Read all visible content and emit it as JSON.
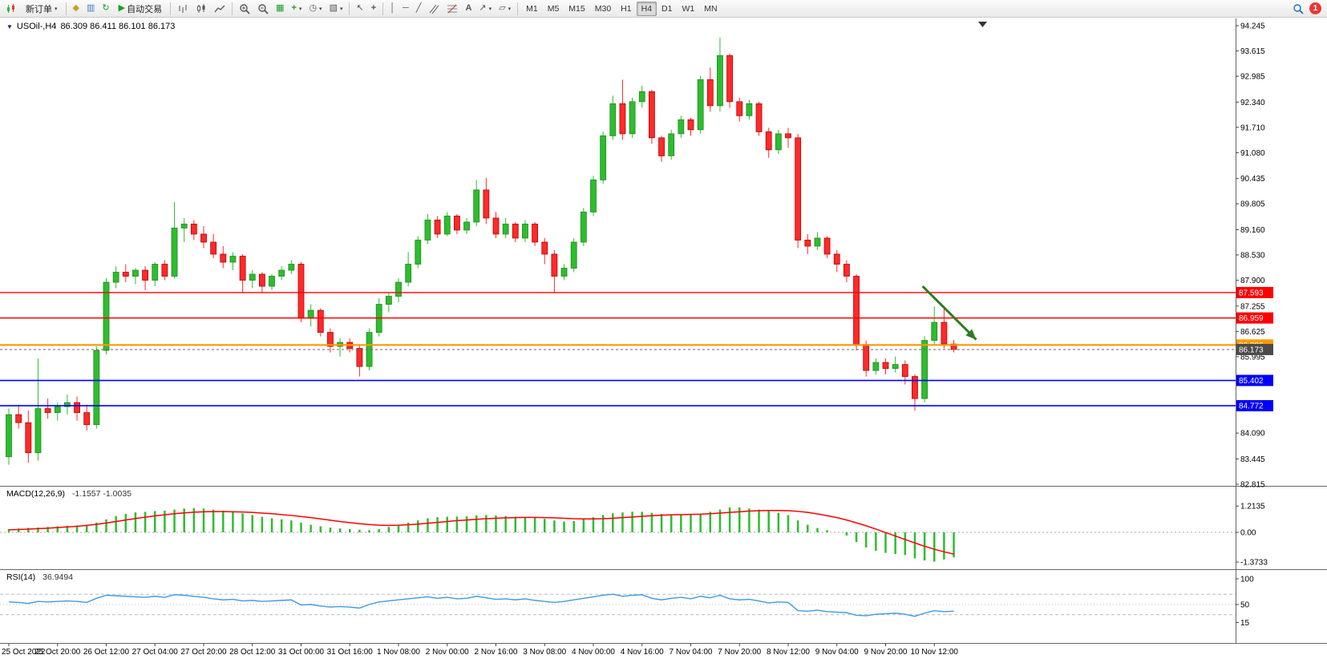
{
  "toolbar": {
    "new_order_label": "新订单",
    "autotrading_label": "自动交易",
    "timeframes": [
      "M1",
      "M5",
      "M15",
      "M30",
      "H1",
      "H4",
      "D1",
      "W1",
      "MN"
    ],
    "active_timeframe": "H4",
    "notification_count": "1"
  },
  "chart_data": {
    "type": "candlestick",
    "symbol": "USOil-",
    "timeframe": "H4",
    "title_text": "USOil-,H4",
    "ohlc_text": "86.309 86.411 86.101 86.173",
    "current_bar": {
      "open": 86.309,
      "high": 86.411,
      "low": 86.101,
      "close": 86.173
    },
    "y_axis": {
      "min": 82.815,
      "max": 94.245,
      "ticks": [
        "94.245",
        "93.615",
        "92.985",
        "92.340",
        "91.710",
        "91.080",
        "90.435",
        "89.805",
        "89.160",
        "88.530",
        "87.900",
        "87.255",
        "86.625",
        "85.995",
        "84.090",
        "83.445",
        "82.815"
      ]
    },
    "x_labels": [
      "25 Oct 2022",
      "25 Oct 20:00",
      "26 Oct 12:00",
      "27 Oct 04:00",
      "27 Oct 20:00",
      "28 Oct 12:00",
      "31 Oct 00:00",
      "31 Oct 16:00",
      "1 Nov 08:00",
      "2 Nov 00:00",
      "2 Nov 16:00",
      "3 Nov 08:00",
      "4 Nov 00:00",
      "4 Nov 16:00",
      "7 Nov 04:00",
      "7 Nov 20:00",
      "8 Nov 12:00",
      "9 Nov 04:00",
      "9 Nov 20:00",
      "10 Nov 12:00"
    ],
    "colors": {
      "bull": "#2EBD2E",
      "bull_border": "#1F8A1F",
      "bear": "#FF2A2A",
      "bear_border": "#B80000",
      "macd_hist": "#2EBD2E",
      "macd_signal": "#FF0000",
      "rsi_line": "#3E9BDE"
    },
    "candles": [
      [
        83.5,
        84.7,
        83.3,
        84.55
      ],
      [
        84.55,
        84.8,
        84.2,
        84.35
      ],
      [
        84.35,
        84.65,
        83.35,
        83.6
      ],
      [
        83.6,
        85.95,
        83.4,
        84.7
      ],
      [
        84.7,
        84.95,
        84.45,
        84.6
      ],
      [
        84.6,
        84.85,
        84.4,
        84.75
      ],
      [
        84.75,
        85.05,
        84.55,
        84.85
      ],
      [
        84.85,
        85.0,
        84.4,
        84.6
      ],
      [
        84.6,
        84.8,
        84.15,
        84.3
      ],
      [
        84.3,
        86.25,
        84.2,
        86.15
      ],
      [
        86.15,
        87.95,
        86.05,
        87.85
      ],
      [
        87.85,
        88.25,
        87.7,
        88.1
      ],
      [
        88.1,
        88.3,
        87.85,
        88.0
      ],
      [
        88.0,
        88.2,
        87.8,
        88.15
      ],
      [
        88.15,
        88.25,
        87.65,
        87.9
      ],
      [
        87.9,
        88.35,
        87.75,
        88.3
      ],
      [
        88.3,
        88.4,
        87.9,
        88.0
      ],
      [
        88.0,
        89.85,
        87.95,
        89.2
      ],
      [
        89.2,
        89.45,
        88.85,
        89.3
      ],
      [
        89.3,
        89.4,
        88.9,
        89.05
      ],
      [
        89.05,
        89.25,
        88.7,
        88.85
      ],
      [
        88.85,
        89.05,
        88.45,
        88.55
      ],
      [
        88.55,
        88.75,
        88.2,
        88.35
      ],
      [
        88.35,
        88.6,
        88.15,
        88.5
      ],
      [
        88.5,
        88.55,
        87.6,
        87.9
      ],
      [
        87.9,
        88.15,
        87.7,
        88.05
      ],
      [
        88.05,
        88.1,
        87.6,
        87.75
      ],
      [
        87.75,
        88.05,
        87.65,
        88.0
      ],
      [
        88.0,
        88.25,
        87.9,
        88.15
      ],
      [
        88.15,
        88.4,
        88.05,
        88.3
      ],
      [
        88.3,
        88.35,
        86.85,
        86.95
      ],
      [
        86.95,
        87.3,
        86.75,
        87.15
      ],
      [
        87.15,
        87.2,
        86.5,
        86.6
      ],
      [
        86.6,
        86.7,
        86.1,
        86.25
      ],
      [
        86.25,
        86.45,
        86.0,
        86.35
      ],
      [
        86.35,
        86.45,
        86.1,
        86.2
      ],
      [
        86.2,
        86.3,
        85.5,
        85.75
      ],
      [
        85.75,
        86.7,
        85.65,
        86.6
      ],
      [
        86.6,
        87.45,
        86.5,
        87.3
      ],
      [
        87.3,
        87.6,
        87.1,
        87.5
      ],
      [
        87.5,
        87.95,
        87.35,
        87.85
      ],
      [
        87.85,
        88.6,
        87.75,
        88.3
      ],
      [
        88.3,
        89.0,
        88.2,
        88.9
      ],
      [
        88.9,
        89.55,
        88.8,
        89.4
      ],
      [
        89.4,
        89.5,
        88.95,
        89.05
      ],
      [
        89.05,
        89.6,
        89.0,
        89.5
      ],
      [
        89.5,
        89.55,
        89.05,
        89.15
      ],
      [
        89.15,
        89.45,
        89.05,
        89.35
      ],
      [
        89.35,
        90.4,
        89.25,
        90.15
      ],
      [
        90.15,
        90.45,
        89.3,
        89.45
      ],
      [
        89.45,
        89.6,
        88.95,
        89.05
      ],
      [
        89.05,
        89.45,
        88.95,
        89.3
      ],
      [
        89.3,
        89.35,
        88.85,
        88.95
      ],
      [
        88.95,
        89.4,
        88.85,
        89.3
      ],
      [
        89.3,
        89.35,
        88.75,
        88.85
      ],
      [
        88.85,
        88.95,
        88.3,
        88.55
      ],
      [
        88.55,
        88.65,
        87.6,
        88.0
      ],
      [
        88.0,
        88.3,
        87.9,
        88.2
      ],
      [
        88.2,
        88.95,
        88.1,
        88.85
      ],
      [
        88.85,
        89.7,
        88.75,
        89.6
      ],
      [
        89.6,
        90.5,
        89.5,
        90.4
      ],
      [
        90.4,
        91.6,
        90.3,
        91.5
      ],
      [
        91.5,
        92.5,
        91.4,
        92.3
      ],
      [
        92.3,
        92.9,
        91.4,
        91.55
      ],
      [
        91.55,
        92.45,
        91.45,
        92.35
      ],
      [
        92.35,
        92.75,
        92.2,
        92.6
      ],
      [
        92.6,
        92.65,
        91.3,
        91.45
      ],
      [
        91.45,
        91.5,
        90.85,
        91.0
      ],
      [
        91.0,
        91.65,
        90.9,
        91.55
      ],
      [
        91.55,
        92.0,
        91.45,
        91.9
      ],
      [
        91.9,
        91.95,
        91.5,
        91.65
      ],
      [
        91.65,
        93.0,
        91.55,
        92.9
      ],
      [
        92.9,
        93.2,
        92.1,
        92.25
      ],
      [
        92.25,
        93.95,
        92.1,
        93.5
      ],
      [
        93.5,
        93.55,
        92.2,
        92.35
      ],
      [
        92.35,
        92.45,
        91.85,
        92.0
      ],
      [
        92.0,
        92.4,
        91.9,
        92.3
      ],
      [
        92.3,
        92.35,
        91.5,
        91.6
      ],
      [
        91.6,
        91.7,
        90.95,
        91.15
      ],
      [
        91.15,
        91.65,
        91.05,
        91.55
      ],
      [
        91.55,
        91.7,
        91.2,
        91.45
      ],
      [
        91.45,
        91.55,
        88.7,
        88.9
      ],
      [
        88.9,
        89.05,
        88.55,
        88.75
      ],
      [
        88.75,
        89.1,
        88.65,
        88.95
      ],
      [
        88.95,
        89.0,
        88.45,
        88.55
      ],
      [
        88.55,
        88.65,
        88.1,
        88.3
      ],
      [
        88.3,
        88.4,
        87.85,
        88.0
      ],
      [
        88.0,
        88.05,
        86.15,
        86.3
      ],
      [
        86.3,
        86.4,
        85.5,
        85.65
      ],
      [
        85.65,
        85.95,
        85.55,
        85.85
      ],
      [
        85.85,
        85.95,
        85.55,
        85.7
      ],
      [
        85.7,
        86.0,
        85.6,
        85.8
      ],
      [
        85.8,
        85.9,
        85.3,
        85.5
      ],
      [
        85.5,
        85.55,
        84.65,
        84.95
      ],
      [
        84.95,
        86.5,
        84.85,
        86.4
      ],
      [
        86.4,
        87.25,
        86.3,
        86.85
      ],
      [
        86.85,
        87.2,
        86.2,
        86.31
      ],
      [
        86.309,
        86.411,
        86.101,
        86.173
      ]
    ],
    "hlines": [
      {
        "price": 87.593,
        "label": "87.593",
        "color": "#FF0000",
        "width": 1.4
      },
      {
        "price": 86.959,
        "label": "86.959",
        "color": "#FF0000",
        "width": 1.4
      },
      {
        "price": 86.286,
        "label": "86.286",
        "color": "#FF9900",
        "width": 2.2
      },
      {
        "price": 85.402,
        "label": "85.402",
        "color": "#0000FF",
        "width": 1.6
      },
      {
        "price": 84.772,
        "label": "84.772",
        "color": "#0000FF",
        "width": 1.6
      }
    ],
    "current_price": {
      "value": 86.173,
      "label": "86.173",
      "color": "#4A4A4A"
    },
    "arrow": {
      "from": {
        "i": 93.8,
        "p": 87.75
      },
      "to": {
        "i": 99.3,
        "p": 86.42
      },
      "color": "#2E7D1E"
    },
    "indicators": {
      "macd": {
        "label": "MACD(12,26,9)",
        "values_text": "-1.1557 -1.0035",
        "axis_labels": [
          "1.2135",
          "0.00",
          "-1.3733"
        ],
        "histogram": [
          0.15,
          0.18,
          0.2,
          0.22,
          0.25,
          0.28,
          0.3,
          0.32,
          0.35,
          0.45,
          0.6,
          0.75,
          0.85,
          0.92,
          0.95,
          0.98,
          1.0,
          1.05,
          1.1,
          1.12,
          1.1,
          1.05,
          1.0,
          0.95,
          0.88,
          0.8,
          0.72,
          0.65,
          0.6,
          0.55,
          0.45,
          0.35,
          0.28,
          0.22,
          0.18,
          0.15,
          0.12,
          0.1,
          0.15,
          0.25,
          0.35,
          0.45,
          0.55,
          0.65,
          0.7,
          0.72,
          0.73,
          0.74,
          0.78,
          0.8,
          0.78,
          0.75,
          0.72,
          0.7,
          0.68,
          0.62,
          0.55,
          0.5,
          0.52,
          0.6,
          0.7,
          0.8,
          0.88,
          0.92,
          0.95,
          0.95,
          0.9,
          0.85,
          0.82,
          0.8,
          0.8,
          0.85,
          0.95,
          1.05,
          1.15,
          1.15,
          1.1,
          1.05,
          0.98,
          0.9,
          0.8,
          0.55,
          0.35,
          0.2,
          0.1,
          0.0,
          -0.15,
          -0.45,
          -0.7,
          -0.85,
          -0.95,
          -1.0,
          -1.05,
          -1.2,
          -1.3,
          -1.35,
          -1.25,
          -1.1557
        ],
        "signal": [
          0.12,
          0.13,
          0.15,
          0.17,
          0.19,
          0.22,
          0.25,
          0.28,
          0.32,
          0.37,
          0.43,
          0.5,
          0.57,
          0.64,
          0.7,
          0.76,
          0.81,
          0.86,
          0.9,
          0.93,
          0.95,
          0.96,
          0.96,
          0.95,
          0.94,
          0.92,
          0.89,
          0.86,
          0.82,
          0.78,
          0.73,
          0.68,
          0.62,
          0.56,
          0.5,
          0.45,
          0.4,
          0.36,
          0.33,
          0.32,
          0.33,
          0.35,
          0.38,
          0.42,
          0.46,
          0.5,
          0.54,
          0.57,
          0.6,
          0.63,
          0.65,
          0.67,
          0.68,
          0.69,
          0.69,
          0.68,
          0.67,
          0.65,
          0.63,
          0.62,
          0.62,
          0.63,
          0.65,
          0.68,
          0.71,
          0.74,
          0.77,
          0.79,
          0.81,
          0.82,
          0.83,
          0.84,
          0.86,
          0.89,
          0.92,
          0.95,
          0.98,
          1.0,
          1.01,
          1.01,
          1.0,
          0.97,
          0.92,
          0.85,
          0.77,
          0.68,
          0.57,
          0.44,
          0.3,
          0.15,
          -0.01,
          -0.17,
          -0.33,
          -0.49,
          -0.64,
          -0.78,
          -0.9,
          -1.0035
        ]
      },
      "rsi": {
        "label": "RSI(14)",
        "value_text": "36.9494",
        "axis_labels": [
          "100",
          "50",
          "15"
        ],
        "levels": [
          70,
          50,
          30
        ],
        "values": [
          55,
          54,
          52,
          56,
          55,
          56,
          57,
          56,
          54,
          62,
          68,
          67,
          66,
          65,
          64,
          66,
          64,
          69,
          68,
          66,
          64,
          61,
          59,
          60,
          57,
          58,
          56,
          57,
          58,
          59,
          49,
          50,
          47,
          45,
          46,
          45,
          43,
          50,
          55,
          57,
          59,
          61,
          63,
          65,
          62,
          64,
          61,
          62,
          66,
          63,
          60,
          61,
          59,
          61,
          58,
          56,
          54,
          56,
          59,
          62,
          65,
          68,
          70,
          66,
          68,
          69,
          62,
          59,
          62,
          64,
          61,
          66,
          63,
          68,
          61,
          59,
          60,
          57,
          53,
          55,
          54,
          38,
          37,
          39,
          36,
          35,
          34,
          29,
          28,
          31,
          32,
          33,
          31,
          27,
          33,
          38,
          36,
          36.95
        ]
      }
    }
  }
}
